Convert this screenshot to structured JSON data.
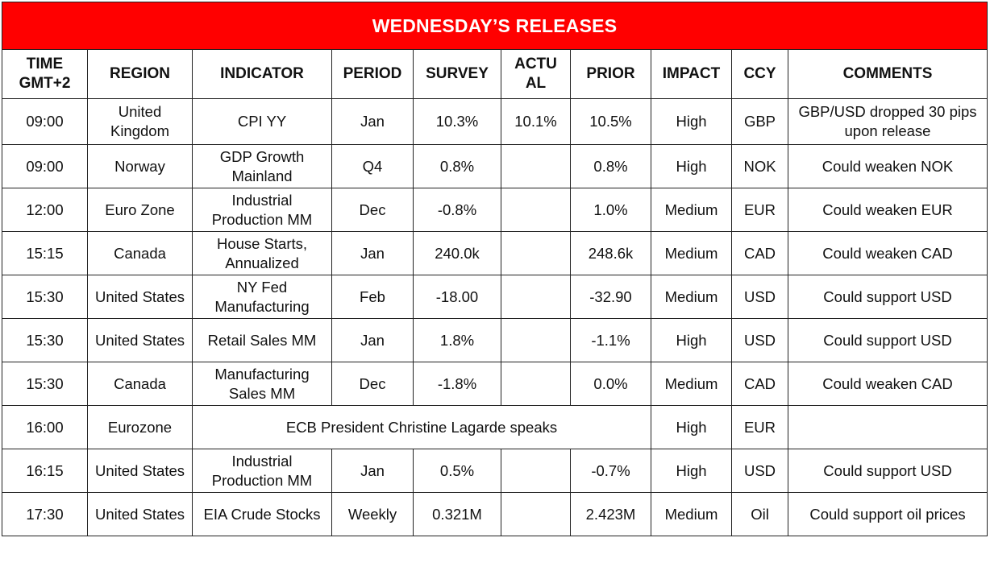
{
  "title": "WEDNESDAY’S RELEASES",
  "headers": {
    "time": "TIME GMT+2",
    "region": "REGION",
    "indicator": "INDICATOR",
    "period": "PERIOD",
    "survey": "SURVEY",
    "actual": "ACTU AL",
    "prior": "PRIOR",
    "impact": "IMPACT",
    "ccy": "CCY",
    "comments": "COMMENTS"
  },
  "rows": [
    {
      "time": "09:00",
      "region": "United Kingdom",
      "indicator": "CPI YY",
      "period": "Jan",
      "survey": "10.3%",
      "actual": "10.1%",
      "prior": "10.5%",
      "impact": "High",
      "ccy": "GBP",
      "comments": "GBP/USD dropped 30 pips upon release"
    },
    {
      "time": "09:00",
      "region": "Norway",
      "indicator": "GDP Growth Mainland",
      "period": "Q4",
      "survey": "0.8%",
      "actual": "",
      "prior": "0.8%",
      "impact": "High",
      "ccy": "NOK",
      "comments": "Could weaken NOK"
    },
    {
      "time": "12:00",
      "region": "Euro Zone",
      "indicator": "Industrial Production MM",
      "period": "Dec",
      "survey": "-0.8%",
      "actual": "",
      "prior": "1.0%",
      "impact": "Medium",
      "ccy": "EUR",
      "comments": "Could weaken EUR"
    },
    {
      "time": "15:15",
      "region": "Canada",
      "indicator": "House Starts, Annualized",
      "period": "Jan",
      "survey": "240.0k",
      "actual": "",
      "prior": "248.6k",
      "impact": "Medium",
      "ccy": "CAD",
      "comments": "Could weaken CAD"
    },
    {
      "time": "15:30",
      "region": "United States",
      "indicator": "NY Fed Manufacturing",
      "period": "Feb",
      "survey": "-18.00",
      "actual": "",
      "prior": "-32.90",
      "impact": "Medium",
      "ccy": "USD",
      "comments": "Could support USD"
    },
    {
      "time": "15:30",
      "region": "United States",
      "indicator": "Retail Sales MM",
      "period": "Jan",
      "survey": "1.8%",
      "actual": "",
      "prior": "-1.1%",
      "impact": "High",
      "ccy": "USD",
      "comments": "Could support USD"
    },
    {
      "time": "15:30",
      "region": "Canada",
      "indicator": "Manufacturing Sales MM",
      "period": "Dec",
      "survey": "-1.8%",
      "actual": "",
      "prior": "0.0%",
      "impact": "Medium",
      "ccy": "CAD",
      "comments": "Could weaken CAD"
    },
    {
      "time": "16:00",
      "region": "Eurozone",
      "event": "ECB President Christine Lagarde speaks",
      "impact": "High",
      "ccy": "EUR",
      "comments": ""
    },
    {
      "time": "16:15",
      "region": "United States",
      "indicator": "Industrial Production MM",
      "period": "Jan",
      "survey": "0.5%",
      "actual": "",
      "prior": "-0.7%",
      "impact": "High",
      "ccy": "USD",
      "comments": "Could support USD"
    },
    {
      "time": "17:30",
      "region": "United States",
      "indicator": "EIA Crude Stocks",
      "period": "Weekly",
      "survey": "0.321M",
      "actual": "",
      "prior": "2.423M",
      "impact": "Medium",
      "ccy": "Oil",
      "comments": "Could support oil prices"
    }
  ]
}
